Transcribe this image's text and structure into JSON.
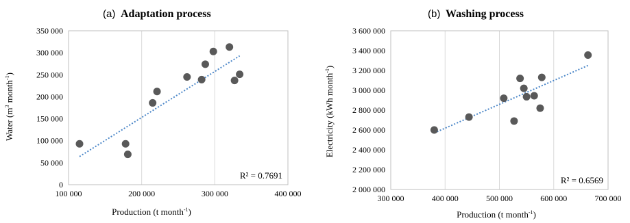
{
  "chart_data": [
    {
      "type": "scatter",
      "panel_label": "(a)",
      "title": "Adaptation process",
      "xlabel": {
        "main": "Production (t month",
        "sup": "-1",
        "end": ")"
      },
      "ylabel": {
        "main": "Water (m",
        "sup1": "3",
        "mid": " month",
        "sup2": "-1",
        "end": ")"
      },
      "xlim": [
        100000,
        400000
      ],
      "ylim": [
        0,
        350000
      ],
      "x_ticks": [
        100000,
        200000,
        300000,
        400000
      ],
      "x_tick_labels": [
        "100 000",
        "200 000",
        "300 000",
        "400 000"
      ],
      "y_ticks": [
        0,
        50000,
        100000,
        150000,
        200000,
        250000,
        300000,
        350000
      ],
      "y_tick_labels": [
        "0",
        "50 000",
        "100 000",
        "150 000",
        "200 000",
        "250 000",
        "300 000",
        "350 000"
      ],
      "grid": "vertical",
      "points": [
        {
          "x": 115000,
          "y": 93000
        },
        {
          "x": 178000,
          "y": 93000
        },
        {
          "x": 181000,
          "y": 69000
        },
        {
          "x": 215000,
          "y": 186000
        },
        {
          "x": 221000,
          "y": 212000
        },
        {
          "x": 262000,
          "y": 245000
        },
        {
          "x": 282000,
          "y": 239000
        },
        {
          "x": 287000,
          "y": 274000
        },
        {
          "x": 298000,
          "y": 303000
        },
        {
          "x": 320000,
          "y": 313000
        },
        {
          "x": 327000,
          "y": 237000
        },
        {
          "x": 334000,
          "y": 251000
        }
      ],
      "trendline": {
        "x": [
          115000,
          334000
        ],
        "y": [
          64000,
          293000
        ]
      },
      "r2_label": "R² = 0.7691",
      "colors": {
        "point": "#595959",
        "trend": "#4a86c8",
        "axis": "#bfbfbf",
        "grid": "#d9d9d9"
      }
    },
    {
      "type": "scatter",
      "panel_label": "(b)",
      "title": "Washing process",
      "xlabel": {
        "main": "Production (t month",
        "sup": "-1",
        "end": ")"
      },
      "ylabel": {
        "main": "Electricity  (kWh month",
        "sup": "-1",
        "end": ")"
      },
      "xlim": [
        300000,
        700000
      ],
      "ylim": [
        2000000,
        3600000
      ],
      "x_ticks": [
        300000,
        400000,
        500000,
        600000,
        700000
      ],
      "x_tick_labels": [
        "300 000",
        "400 000",
        "500 000",
        "600 000",
        "700 000"
      ],
      "y_ticks": [
        2000000,
        2200000,
        2400000,
        2600000,
        2800000,
        3000000,
        3200000,
        3400000,
        3600000
      ],
      "y_tick_labels": [
        "2 000 000",
        "2 200 000",
        "2 400 000",
        "2 600 000",
        "2 800 000",
        "3 000 000",
        "3 200 000",
        "3 400 000",
        "3 600 000"
      ],
      "grid": "vertical",
      "points": [
        {
          "x": 380000,
          "y": 2600000
        },
        {
          "x": 444000,
          "y": 2730000
        },
        {
          "x": 508000,
          "y": 2920000
        },
        {
          "x": 527000,
          "y": 2690000
        },
        {
          "x": 538000,
          "y": 3120000
        },
        {
          "x": 545000,
          "y": 3020000
        },
        {
          "x": 550000,
          "y": 2935000
        },
        {
          "x": 564000,
          "y": 2945000
        },
        {
          "x": 575000,
          "y": 2820000
        },
        {
          "x": 578000,
          "y": 3130000
        },
        {
          "x": 663000,
          "y": 3355000
        }
      ],
      "trendline": {
        "x": [
          380000,
          663000
        ],
        "y": [
          2570000,
          3250000
        ]
      },
      "r2_label": "R² = 0.6569",
      "colors": {
        "point": "#595959",
        "trend": "#4a86c8",
        "axis": "#bfbfbf",
        "grid": "#d9d9d9"
      }
    }
  ]
}
